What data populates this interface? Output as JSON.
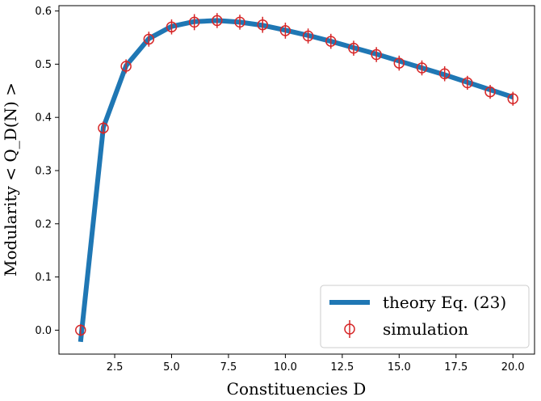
{
  "chart_data": {
    "type": "line",
    "xlabel": "Constituencies D",
    "ylabel": "Modularity < Q_D(N) >",
    "xlim": [
      0.05,
      20.95
    ],
    "ylim": [
      -0.045,
      0.61
    ],
    "x_ticks": [
      "2.5",
      "5.0",
      "7.5",
      "10.0",
      "12.5",
      "15.0",
      "17.5",
      "20.0"
    ],
    "y_ticks": [
      "0.0",
      "0.1",
      "0.2",
      "0.3",
      "0.4",
      "0.5",
      "0.6"
    ],
    "legend_position": "lower-right",
    "grid": false,
    "series": [
      {
        "name": "theory Eq. (23)",
        "kind": "line",
        "color": "#1f77b4",
        "x": [
          1,
          2,
          3,
          4,
          5,
          6,
          7,
          8,
          9,
          10,
          11,
          12,
          13,
          14,
          15,
          16,
          17,
          18,
          19,
          20
        ],
        "values": [
          -0.022,
          0.381,
          0.497,
          0.548,
          0.571,
          0.58,
          0.582,
          0.579,
          0.573,
          0.564,
          0.554,
          0.543,
          0.531,
          0.519,
          0.506,
          0.493,
          0.48,
          0.466,
          0.452,
          0.438
        ]
      },
      {
        "name": "simulation",
        "kind": "errorbar",
        "color": "#d62728",
        "x": [
          1,
          2,
          3,
          4,
          5,
          6,
          7,
          8,
          9,
          10,
          11,
          12,
          13,
          14,
          15,
          16,
          17,
          18,
          19,
          20
        ],
        "values": [
          0.0,
          0.38,
          0.496,
          0.547,
          0.57,
          0.579,
          0.582,
          0.579,
          0.574,
          0.563,
          0.553,
          0.543,
          0.53,
          0.518,
          0.502,
          0.493,
          0.482,
          0.465,
          0.448,
          0.435
        ],
        "err": [
          0.005,
          0.006,
          0.007,
          0.008,
          0.008,
          0.009,
          0.008,
          0.008,
          0.009,
          0.009,
          0.008,
          0.008,
          0.008,
          0.008,
          0.008,
          0.008,
          0.008,
          0.007,
          0.007,
          0.007
        ]
      }
    ]
  }
}
